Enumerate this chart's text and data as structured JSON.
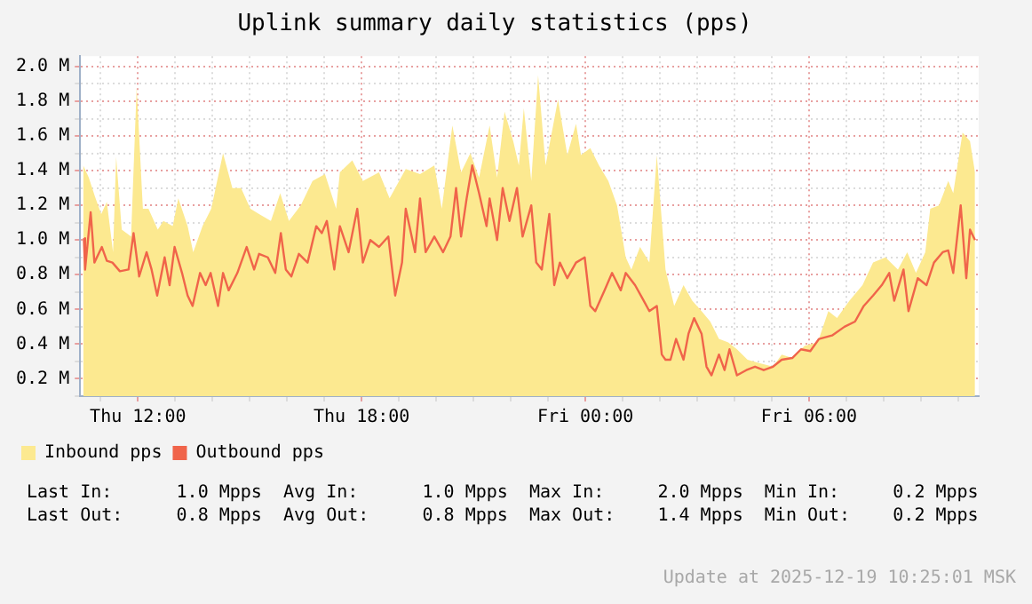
{
  "chart_data": {
    "type": "line",
    "title": "Uplink summary daily statistics (pps)",
    "xlim": [
      "2025-12-18T10:27",
      "2025-12-19T10:33"
    ],
    "xticks": [
      {
        "value": "2025-12-18T11:00",
        "label": null
      },
      {
        "value": "2025-12-18T12:00",
        "label": "Thu 12:00"
      },
      {
        "value": "2025-12-18T13:00",
        "label": null
      },
      {
        "value": "2025-12-18T14:00",
        "label": null
      },
      {
        "value": "2025-12-18T15:00",
        "label": null
      },
      {
        "value": "2025-12-18T16:00",
        "label": null
      },
      {
        "value": "2025-12-18T17:00",
        "label": null
      },
      {
        "value": "2025-12-18T18:00",
        "label": "Thu 18:00"
      },
      {
        "value": "2025-12-18T19:00",
        "label": null
      },
      {
        "value": "2025-12-18T20:00",
        "label": null
      },
      {
        "value": "2025-12-18T21:00",
        "label": null
      },
      {
        "value": "2025-12-18T22:00",
        "label": null
      },
      {
        "value": "2025-12-18T23:00",
        "label": null
      },
      {
        "value": "2025-12-19T00:00",
        "label": "Fri 00:00"
      },
      {
        "value": "2025-12-19T01:00",
        "label": null
      },
      {
        "value": "2025-12-19T02:00",
        "label": null
      },
      {
        "value": "2025-12-19T03:00",
        "label": null
      },
      {
        "value": "2025-12-19T04:00",
        "label": null
      },
      {
        "value": "2025-12-19T05:00",
        "label": null
      },
      {
        "value": "2025-12-19T06:00",
        "label": "Fri 06:00"
      },
      {
        "value": "2025-12-19T07:00",
        "label": null
      },
      {
        "value": "2025-12-19T08:00",
        "label": null
      },
      {
        "value": "2025-12-19T09:00",
        "label": null
      },
      {
        "value": "2025-12-19T10:00",
        "label": null
      }
    ],
    "ylim": [
      0.1,
      2.06
    ],
    "yticks": [
      {
        "value": 0.1,
        "label": null
      },
      {
        "value": 0.2,
        "label": "0.2 M"
      },
      {
        "value": 0.3,
        "label": null
      },
      {
        "value": 0.4,
        "label": "0.4 M"
      },
      {
        "value": 0.5,
        "label": null
      },
      {
        "value": 0.6,
        "label": "0.6 M"
      },
      {
        "value": 0.7,
        "label": null
      },
      {
        "value": 0.8,
        "label": "0.8 M"
      },
      {
        "value": 0.9,
        "label": null
      },
      {
        "value": 1.0,
        "label": "1.0 M"
      },
      {
        "value": 1.1,
        "label": null
      },
      {
        "value": 1.2,
        "label": "1.2 M"
      },
      {
        "value": 1.3,
        "label": null
      },
      {
        "value": 1.4,
        "label": "1.4 M"
      },
      {
        "value": 1.5,
        "label": null
      },
      {
        "value": 1.6,
        "label": "1.6 M"
      },
      {
        "value": 1.7,
        "label": null
      },
      {
        "value": 1.8,
        "label": "1.8 M"
      },
      {
        "value": 1.9,
        "label": null
      },
      {
        "value": 2.0,
        "label": "2.0 M"
      }
    ],
    "grid": true,
    "legend": "bottom left",
    "marker": "none",
    "series": [
      {
        "name": "Inbound pps",
        "type": "area",
        "color": "#fce990",
        "x": [
          "2025-12-18T10:32",
          "2025-12-18T10:41",
          "2025-12-18T10:51",
          "2025-12-18T11:01",
          "2025-12-18T11:10",
          "2025-12-18T11:20",
          "2025-12-18T11:25",
          "2025-12-18T11:34",
          "2025-12-18T11:49",
          "2025-12-18T11:58",
          "2025-12-18T12:08",
          "2025-12-18T12:17",
          "2025-12-18T12:32",
          "2025-12-18T12:41",
          "2025-12-18T12:56",
          "2025-12-18T13:05",
          "2025-12-18T13:20",
          "2025-12-18T13:29",
          "2025-12-18T13:44",
          "2025-12-18T13:58",
          "2025-12-18T14:17",
          "2025-12-18T14:32",
          "2025-12-18T14:46",
          "2025-12-18T15:01",
          "2025-12-18T15:15",
          "2025-12-18T15:34",
          "2025-12-18T15:49",
          "2025-12-18T16:03",
          "2025-12-18T16:22",
          "2025-12-18T16:41",
          "2025-12-18T17:01",
          "2025-12-18T17:19",
          "2025-12-18T17:25",
          "2025-12-18T17:45",
          "2025-12-18T18:02",
          "2025-12-18T18:28",
          "2025-12-18T18:45",
          "2025-12-18T19:11",
          "2025-12-18T19:34",
          "2025-12-18T19:57",
          "2025-12-18T20:09",
          "2025-12-18T20:26",
          "2025-12-18T20:40",
          "2025-12-18T20:55",
          "2025-12-18T21:09",
          "2025-12-18T21:26",
          "2025-12-18T21:38",
          "2025-12-18T21:50",
          "2025-12-18T22:04",
          "2025-12-18T22:13",
          "2025-12-18T22:21",
          "2025-12-18T22:33",
          "2025-12-18T22:44",
          "2025-12-18T22:56",
          "2025-12-18T23:16",
          "2025-12-18T23:31",
          "2025-12-18T23:45",
          "2025-12-18T23:53",
          "2025-12-19T00:08",
          "2025-12-19T00:22",
          "2025-12-19T00:37",
          "2025-12-19T00:51",
          "2025-12-19T01:05",
          "2025-12-19T01:14",
          "2025-12-19T01:28",
          "2025-12-19T01:43",
          "2025-12-19T01:55",
          "2025-12-19T02:09",
          "2025-12-19T02:23",
          "2025-12-19T02:38",
          "2025-12-19T02:52",
          "2025-12-19T03:07",
          "2025-12-19T03:21",
          "2025-12-19T03:35",
          "2025-12-19T03:50",
          "2025-12-19T04:04",
          "2025-12-19T04:21",
          "2025-12-19T04:41",
          "2025-12-19T05:02",
          "2025-12-19T05:16",
          "2025-12-19T05:33",
          "2025-12-19T05:53",
          "2025-12-19T06:14",
          "2025-12-19T06:31",
          "2025-12-19T06:45",
          "2025-12-19T07:05",
          "2025-12-19T07:26",
          "2025-12-19T07:43",
          "2025-12-19T08:03",
          "2025-12-19T08:23",
          "2025-12-19T08:38",
          "2025-12-19T08:52",
          "2025-12-19T09:07",
          "2025-12-19T09:15",
          "2025-12-19T09:29",
          "2025-12-19T09:44",
          "2025-12-19T09:52",
          "2025-12-19T10:07",
          "2025-12-19T10:19",
          "2025-12-19T10:27"
        ],
        "values": [
          1.43,
          1.36,
          1.25,
          1.15,
          1.22,
          0.93,
          1.48,
          1.06,
          1.02,
          1.88,
          1.18,
          1.18,
          1.06,
          1.11,
          1.08,
          1.24,
          1.08,
          0.93,
          1.08,
          1.18,
          1.5,
          1.3,
          1.3,
          1.18,
          1.15,
          1.11,
          1.27,
          1.11,
          1.2,
          1.34,
          1.38,
          1.18,
          1.39,
          1.46,
          1.34,
          1.39,
          1.24,
          1.41,
          1.38,
          1.43,
          1.18,
          1.66,
          1.39,
          1.5,
          1.36,
          1.66,
          1.36,
          1.74,
          1.57,
          1.43,
          1.76,
          1.34,
          1.95,
          1.43,
          1.81,
          1.49,
          1.67,
          1.49,
          1.53,
          1.43,
          1.34,
          1.2,
          0.9,
          0.83,
          0.96,
          0.87,
          1.49,
          0.83,
          0.62,
          0.74,
          0.65,
          0.59,
          0.53,
          0.43,
          0.41,
          0.37,
          0.31,
          0.29,
          0.27,
          0.34,
          0.32,
          0.39,
          0.41,
          0.59,
          0.55,
          0.65,
          0.74,
          0.87,
          0.9,
          0.83,
          0.93,
          0.81,
          0.93,
          1.18,
          1.2,
          1.34,
          1.27,
          1.62,
          1.57,
          1.39
        ]
      },
      {
        "name": "Outbound pps",
        "type": "line",
        "color": "#f0644a",
        "x": [
          "2025-12-18T10:33",
          "2025-12-18T10:35",
          "2025-12-18T10:44",
          "2025-12-18T10:50",
          "2025-12-18T11:02",
          "2025-12-18T11:10",
          "2025-12-18T11:19",
          "2025-12-18T11:31",
          "2025-12-18T11:45",
          "2025-12-18T11:53",
          "2025-12-18T12:02",
          "2025-12-18T12:14",
          "2025-12-18T12:22",
          "2025-12-18T12:31",
          "2025-12-18T12:43",
          "2025-12-18T12:51",
          "2025-12-18T12:59",
          "2025-12-18T13:11",
          "2025-12-18T13:20",
          "2025-12-18T13:28",
          "2025-12-18T13:40",
          "2025-12-18T13:49",
          "2025-12-18T13:57",
          "2025-12-18T14:09",
          "2025-12-18T14:17",
          "2025-12-18T14:26",
          "2025-12-18T14:40",
          "2025-12-18T14:55",
          "2025-12-18T15:07",
          "2025-12-18T15:15",
          "2025-12-18T15:29",
          "2025-12-18T15:41",
          "2025-12-18T15:50",
          "2025-12-18T15:58",
          "2025-12-18T16:07",
          "2025-12-18T16:19",
          "2025-12-18T16:33",
          "2025-12-18T16:47",
          "2025-12-18T16:56",
          "2025-12-18T17:04",
          "2025-12-18T17:16",
          "2025-12-18T17:25",
          "2025-12-18T17:39",
          "2025-12-18T17:53",
          "2025-12-18T18:02",
          "2025-12-18T18:14",
          "2025-12-18T18:28",
          "2025-12-18T18:43",
          "2025-12-18T18:54",
          "2025-12-18T19:05",
          "2025-12-18T19:11",
          "2025-12-18T19:26",
          "2025-12-18T19:34",
          "2025-12-18T19:43",
          "2025-12-18T19:57",
          "2025-12-18T20:11",
          "2025-12-18T20:23",
          "2025-12-18T20:32",
          "2025-12-18T20:40",
          "2025-12-18T20:49",
          "2025-12-18T20:58",
          "2025-12-18T21:09",
          "2025-12-18T21:21",
          "2025-12-18T21:26",
          "2025-12-18T21:38",
          "2025-12-18T21:47",
          "2025-12-18T21:58",
          "2025-12-18T22:10",
          "2025-12-18T22:19",
          "2025-12-18T22:33",
          "2025-12-18T22:41",
          "2025-12-18T22:50",
          "2025-12-18T23:02",
          "2025-12-18T23:10",
          "2025-12-18T23:19",
          "2025-12-18T23:31",
          "2025-12-18T23:45",
          "2025-12-18T23:59",
          "2025-12-19T00:08",
          "2025-12-19T00:16",
          "2025-12-19T00:31",
          "2025-12-19T00:43",
          "2025-12-19T00:57",
          "2025-12-19T01:05",
          "2025-12-19T01:20",
          "2025-12-19T01:34",
          "2025-12-19T01:43",
          "2025-12-19T01:55",
          "2025-12-19T02:03",
          "2025-12-19T02:09",
          "2025-12-19T02:17",
          "2025-12-19T02:26",
          "2025-12-19T02:38",
          "2025-12-19T02:46",
          "2025-12-19T02:55",
          "2025-12-19T03:07",
          "2025-12-19T03:15",
          "2025-12-19T03:23",
          "2025-12-19T03:35",
          "2025-12-19T03:44",
          "2025-12-19T03:52",
          "2025-12-19T04:04",
          "2025-12-19T04:19",
          "2025-12-19T04:33",
          "2025-12-19T04:47",
          "2025-12-19T05:02",
          "2025-12-19T05:16",
          "2025-12-19T05:33",
          "2025-12-19T05:47",
          "2025-12-19T06:02",
          "2025-12-19T06:16",
          "2025-12-19T06:37",
          "2025-12-19T06:57",
          "2025-12-19T07:14",
          "2025-12-19T07:28",
          "2025-12-19T07:43",
          "2025-12-19T07:57",
          "2025-12-19T08:09",
          "2025-12-19T08:17",
          "2025-12-19T08:32",
          "2025-12-19T08:40",
          "2025-12-19T08:55",
          "2025-12-19T09:09",
          "2025-12-19T09:21",
          "2025-12-19T09:35",
          "2025-12-19T09:44",
          "2025-12-19T09:52",
          "2025-12-19T10:04",
          "2025-12-19T10:13",
          "2025-12-19T10:19",
          "2025-12-19T10:27"
        ],
        "values": [
          1.01,
          0.83,
          1.16,
          0.87,
          0.96,
          0.88,
          0.87,
          0.82,
          0.83,
          1.04,
          0.79,
          0.93,
          0.83,
          0.68,
          0.9,
          0.74,
          0.96,
          0.81,
          0.68,
          0.62,
          0.81,
          0.74,
          0.81,
          0.62,
          0.81,
          0.71,
          0.81,
          0.96,
          0.83,
          0.92,
          0.9,
          0.81,
          1.04,
          0.83,
          0.79,
          0.92,
          0.87,
          1.08,
          1.04,
          1.11,
          0.83,
          1.08,
          0.93,
          1.18,
          0.87,
          1.0,
          0.96,
          1.02,
          0.68,
          0.87,
          1.18,
          0.93,
          1.24,
          0.93,
          1.02,
          0.93,
          1.02,
          1.3,
          1.02,
          1.24,
          1.43,
          1.27,
          1.08,
          1.24,
          1.0,
          1.3,
          1.11,
          1.3,
          1.02,
          1.2,
          0.87,
          0.83,
          1.15,
          0.74,
          0.87,
          0.78,
          0.87,
          0.9,
          0.62,
          0.59,
          0.71,
          0.81,
          0.71,
          0.81,
          0.74,
          0.65,
          0.59,
          0.62,
          0.34,
          0.31,
          0.31,
          0.43,
          0.31,
          0.46,
          0.55,
          0.46,
          0.27,
          0.22,
          0.34,
          0.25,
          0.37,
          0.22,
          0.25,
          0.27,
          0.25,
          0.27,
          0.31,
          0.32,
          0.37,
          0.36,
          0.43,
          0.45,
          0.5,
          0.53,
          0.62,
          0.68,
          0.74,
          0.81,
          0.65,
          0.83,
          0.59,
          0.78,
          0.74,
          0.87,
          0.93,
          0.94,
          0.81,
          1.2,
          0.78,
          1.06,
          1.0
        ]
      }
    ],
    "annotations": [
      "Last In:      1.0 Mpps  Avg In:      1.0 Mpps  Max In:     2.0 Mpps  Min In:     0.2 Mpps",
      "Last Out:     0.8 Mpps  Avg Out:     0.8 Mpps  Max Out:    1.4 Mpps  Min Out:    0.2 Mpps",
      "Update at 2025-12-19 10:25:01 MSK"
    ]
  }
}
